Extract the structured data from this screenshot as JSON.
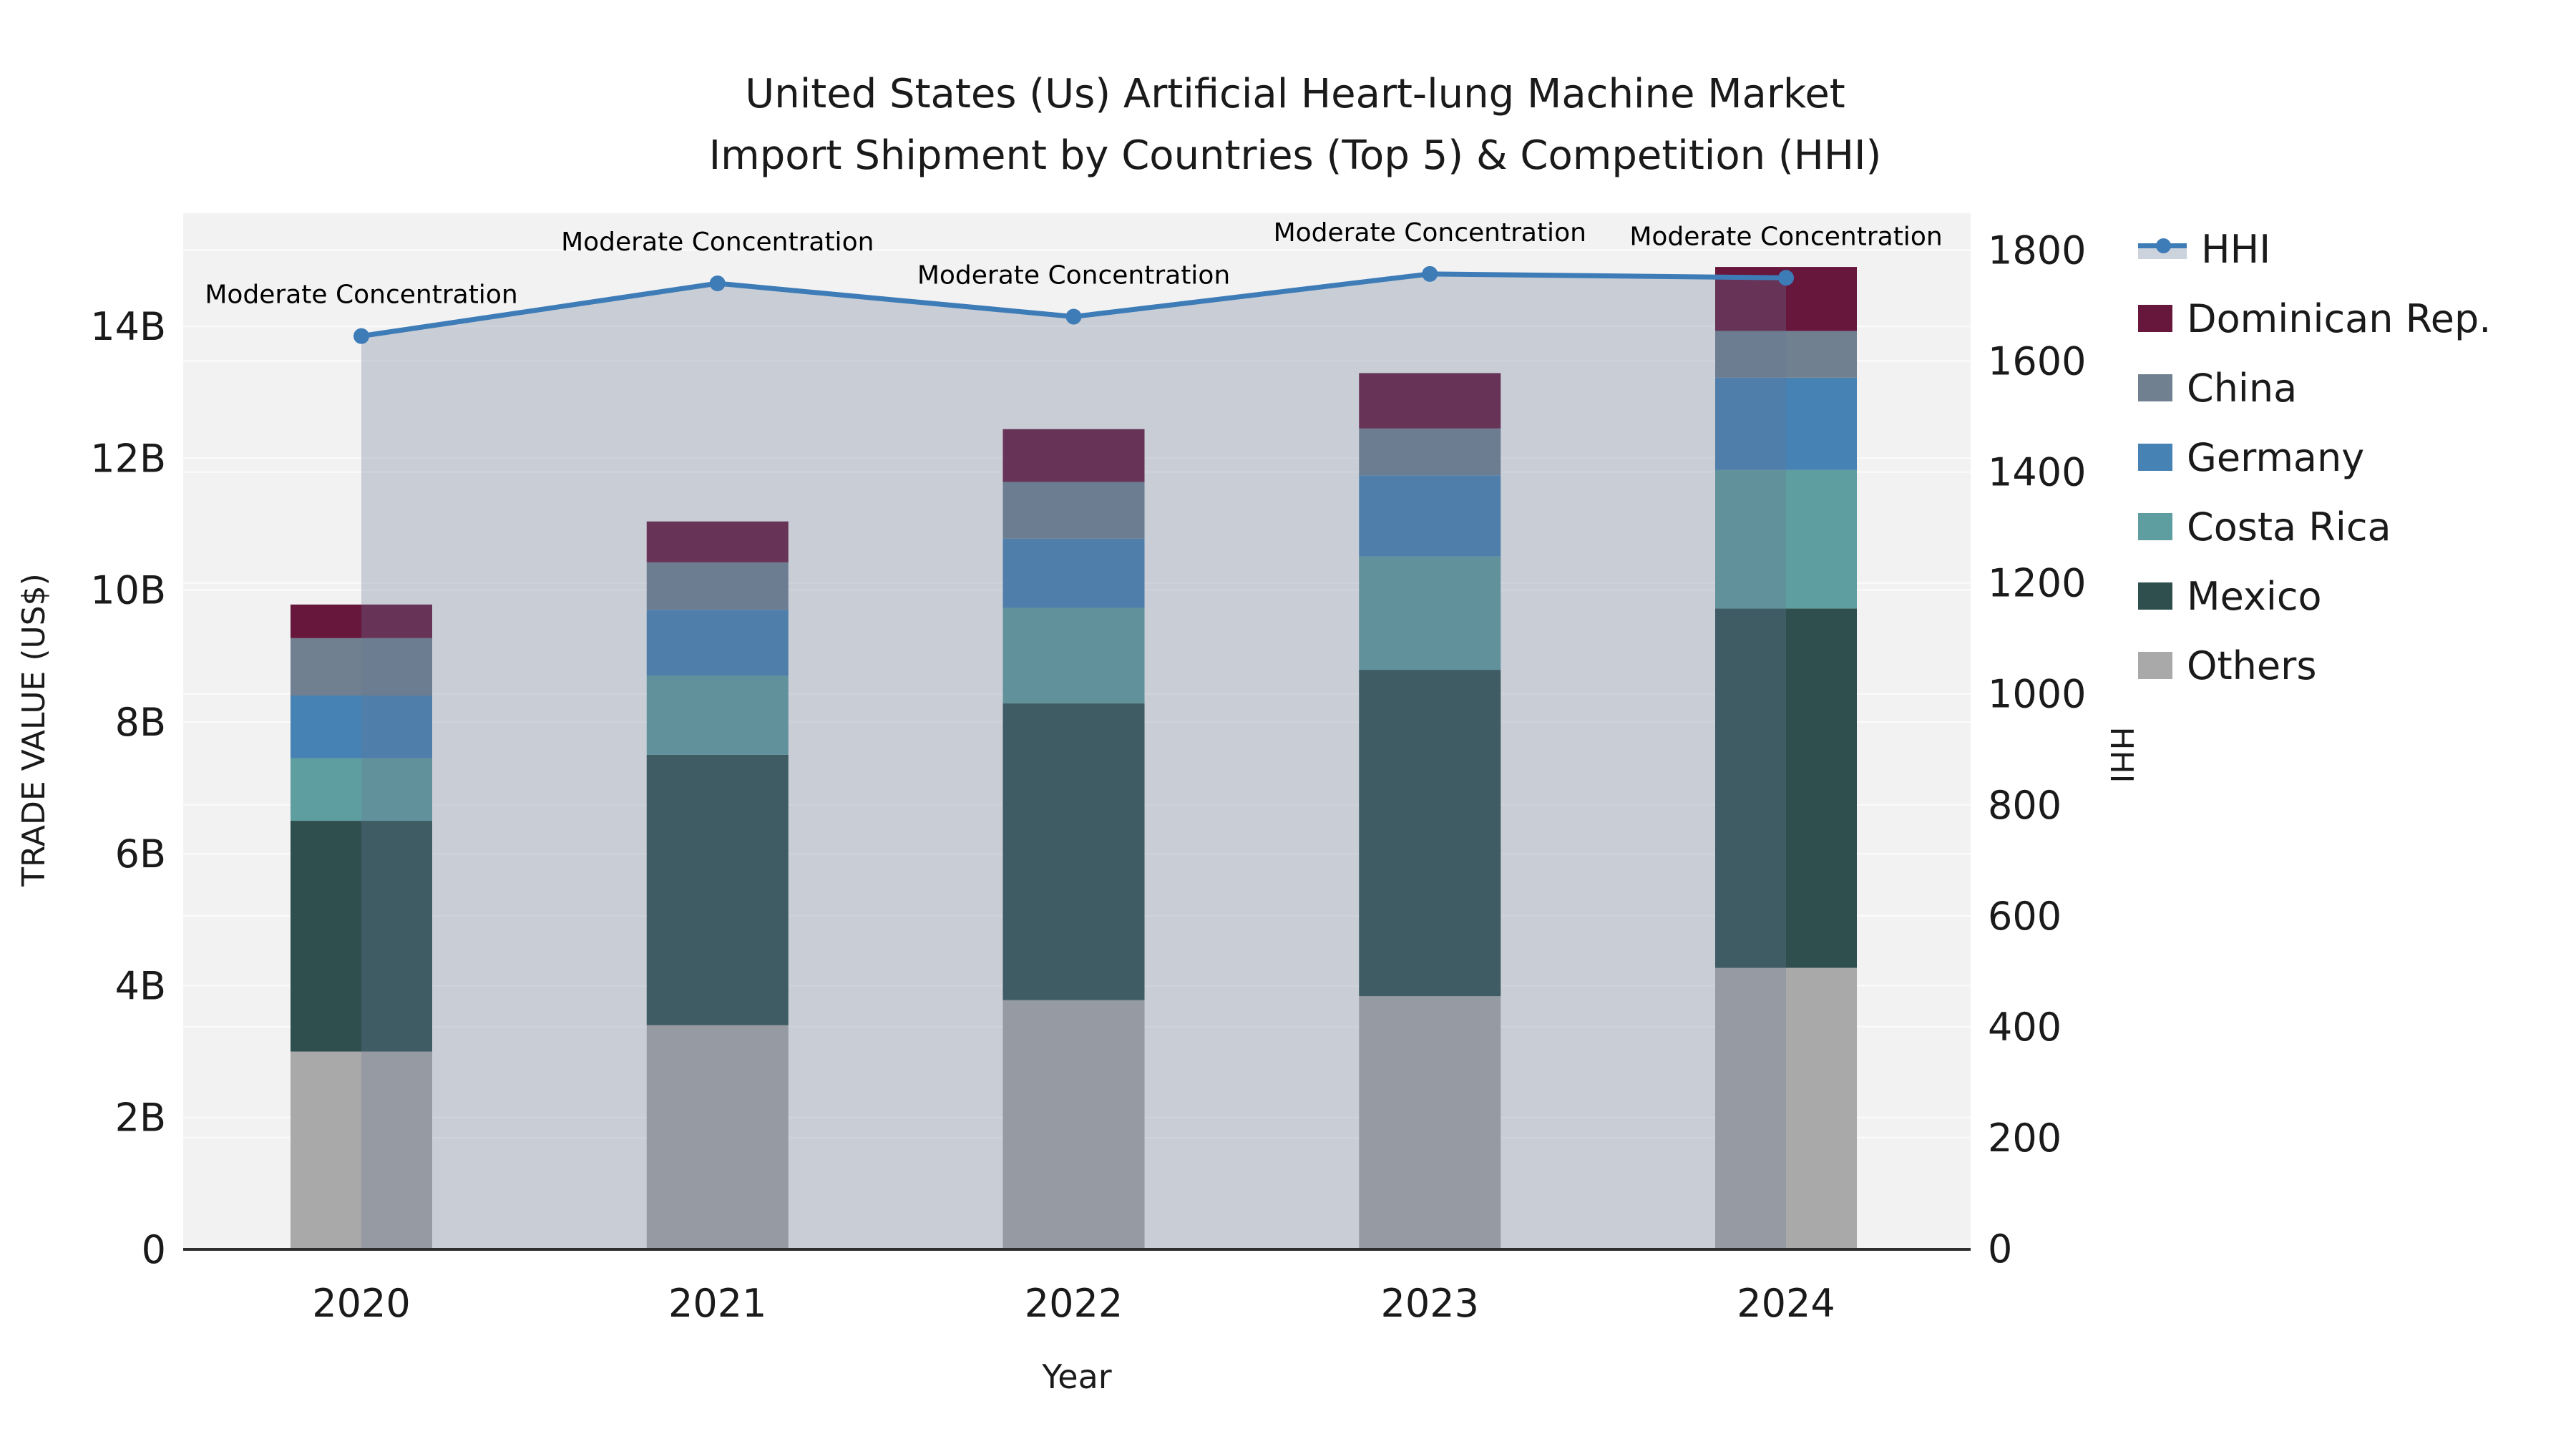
{
  "title": {
    "line1": "United States (Us) Artificial Heart-lung Machine Market",
    "line2": "Import Shipment by Countries (Top 5) & Competition (HHI)"
  },
  "axes": {
    "left": {
      "title": "TRADE VALUE (US$)",
      "tick_labels": [
        "0",
        "2B",
        "4B",
        "6B",
        "8B",
        "10B",
        "12B",
        "14B"
      ],
      "tick_values": [
        0,
        2,
        4,
        6,
        8,
        10,
        12,
        14
      ]
    },
    "right": {
      "title": "HHI",
      "tick_labels": [
        "0",
        "200",
        "400",
        "600",
        "800",
        "1000",
        "1200",
        "1400",
        "1600",
        "1800"
      ],
      "tick_values": [
        0,
        200,
        400,
        600,
        800,
        1000,
        1200,
        1400,
        1600,
        1800
      ]
    },
    "x": {
      "title": "Year",
      "tick_labels": [
        "2020",
        "2021",
        "2022",
        "2023",
        "2024"
      ]
    }
  },
  "legend": {
    "items": [
      {
        "label": "HHI",
        "type": "line",
        "color": "#3E7CB7",
        "band_color": "#CDD3DD"
      },
      {
        "label": "Dominican Rep.",
        "type": "box",
        "color": "#67163C"
      },
      {
        "label": "China",
        "type": "box",
        "color": "#708090"
      },
      {
        "label": "Germany",
        "type": "box",
        "color": "#4682B4"
      },
      {
        "label": "Costa Rica",
        "type": "box",
        "color": "#5F9EA0"
      },
      {
        "label": "Mexico",
        "type": "box",
        "color": "#2F4F4F"
      },
      {
        "label": "Others",
        "type": "box",
        "color": "#A9A9A9"
      }
    ]
  },
  "colors": {
    "plot_bg": "#F2F2F2",
    "grid": "#FAFAFA",
    "spine": "#2E2E2E",
    "text": "#1A1A1A",
    "hhi_line": "#3E7CB7",
    "area_overlay": "rgba(103,119,148,0.30)"
  },
  "chart_data": {
    "type": "bar",
    "subtype": "stacked-bars-with-line-overlay",
    "categories": [
      "2020",
      "2021",
      "2022",
      "2023",
      "2024"
    ],
    "series": [
      {
        "name": "Others",
        "color": "#A9A9A9",
        "values": [
          3.0,
          3.4,
          3.78,
          3.84,
          4.27
        ]
      },
      {
        "name": "Mexico",
        "color": "#2F4F4F",
        "values": [
          3.5,
          4.1,
          4.5,
          4.95,
          5.45
        ]
      },
      {
        "name": "Costa Rica",
        "color": "#5F9EA0",
        "values": [
          0.95,
          1.2,
          1.45,
          1.72,
          2.1
        ]
      },
      {
        "name": "Germany",
        "color": "#4682B4",
        "values": [
          0.95,
          1.0,
          1.05,
          1.23,
          1.4
        ]
      },
      {
        "name": "China",
        "color": "#708090",
        "values": [
          0.87,
          0.72,
          0.86,
          0.71,
          0.71
        ]
      },
      {
        "name": "Dominican Rep.",
        "color": "#67163C",
        "values": [
          0.51,
          0.62,
          0.8,
          0.84,
          0.97
        ]
      }
    ],
    "stack_order": "bottom-to-top",
    "bar_totals_billions": [
      9.78,
      11.04,
      12.44,
      13.29,
      14.9
    ],
    "line_series": {
      "name": "HHI",
      "axis": "right",
      "color": "#3E7CB7",
      "values": [
        1645,
        1740,
        1680,
        1757,
        1750
      ],
      "area_fill": "rgba(103,119,148,0.30)"
    },
    "annotations": [
      "Moderate Concentration",
      "Moderate Concentration",
      "Moderate Concentration",
      "Moderate Concentration",
      "Moderate Concentration"
    ],
    "title": "United States (Us) Artificial Heart-lung Machine Market Import Shipment by Countries (Top 5) & Competition (HHI)",
    "xlabel": "Year",
    "ylabel_left": "TRADE VALUE (US$)",
    "ylabel_right": "HHI",
    "ylim_left": [
      0,
      15.7
    ],
    "ylim_right": [
      0,
      1866
    ],
    "grid": true,
    "legend_position": "right"
  }
}
